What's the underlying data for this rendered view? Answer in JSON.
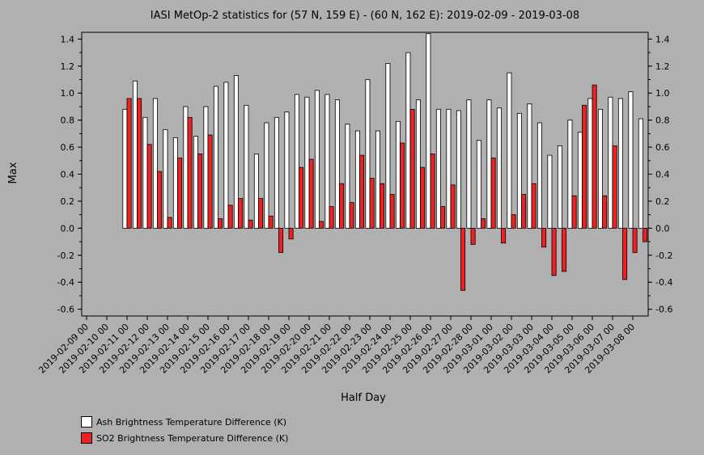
{
  "chart_data": {
    "type": "bar",
    "title": "IASI MetOp-2 statistics for (57 N, 159 E) - (60 N, 162 E): 2019-02-09 - 2019-03-08",
    "xlabel": "Half Day",
    "ylabel": "Max",
    "ylim": [
      -0.65,
      1.45
    ],
    "yticks": [
      "-0.6",
      "-0.4",
      "-0.2",
      "0.0",
      "0.2",
      "0.4",
      "0.6",
      "0.8",
      "1.0",
      "1.2",
      "1.4"
    ],
    "x_tick_labels": [
      "2019-02-09 00",
      "2019-02-10 00",
      "2019-02-11 00",
      "2019-02-12 00",
      "2019-02-13 00",
      "2019-02-14 00",
      "2019-02-15 00",
      "2019-02-16 00",
      "2019-02-17 00",
      "2019-02-18 00",
      "2019-02-19 00",
      "2019-02-20 00",
      "2019-02-21 00",
      "2019-02-22 00",
      "2019-02-23 00",
      "2019-02-24 00",
      "2019-02-25 00",
      "2019-02-26 00",
      "2019-02-27 00",
      "2019-02-28 00",
      "2019-03-01 00",
      "2019-03-02 00",
      "2019-03-03 00",
      "2019-03-04 00",
      "2019-03-05 00",
      "2019-03-06 00",
      "2019-03-07 00",
      "2019-03-08 00"
    ],
    "grid": false,
    "legend_placement": "bottom-left",
    "categories": [
      "2019-02-11 00",
      "2019-02-11 12",
      "2019-02-12 00",
      "2019-02-12 12",
      "2019-02-13 00",
      "2019-02-13 12",
      "2019-02-14 00",
      "2019-02-14 12",
      "2019-02-15 00",
      "2019-02-15 12",
      "2019-02-16 00",
      "2019-02-16 12",
      "2019-02-17 00",
      "2019-02-17 12",
      "2019-02-18 00",
      "2019-02-18 12",
      "2019-02-19 00",
      "2019-02-19 12",
      "2019-02-20 00",
      "2019-02-20 12",
      "2019-02-21 00",
      "2019-02-21 12",
      "2019-02-22 00",
      "2019-02-22 12",
      "2019-02-23 00",
      "2019-02-23 12",
      "2019-02-24 00",
      "2019-02-24 12",
      "2019-02-25 00",
      "2019-02-25 12",
      "2019-02-26 00",
      "2019-02-26 12",
      "2019-02-27 00",
      "2019-02-27 12",
      "2019-02-28 00",
      "2019-02-28 12",
      "2019-03-01 00",
      "2019-03-01 12",
      "2019-03-02 00",
      "2019-03-02 12",
      "2019-03-03 00",
      "2019-03-03 12",
      "2019-03-04 00",
      "2019-03-04 12",
      "2019-03-05 00",
      "2019-03-05 12",
      "2019-03-06 00",
      "2019-03-06 12",
      "2019-03-07 00",
      "2019-03-07 12",
      "2019-03-08 00",
      "2019-03-08 12"
    ],
    "series": [
      {
        "name": "Ash Brightness Temperature Difference (K)",
        "color": "#ffffff",
        "values": [
          0.88,
          1.09,
          0.82,
          0.96,
          0.73,
          0.67,
          0.9,
          0.68,
          0.9,
          1.05,
          1.08,
          1.13,
          0.91,
          0.55,
          0.78,
          0.82,
          0.86,
          0.99,
          0.97,
          1.02,
          0.99,
          0.95,
          0.77,
          0.72,
          1.1,
          0.72,
          1.22,
          0.79,
          1.3,
          0.95,
          1.44,
          0.88,
          0.88,
          0.87,
          0.95,
          0.65,
          0.95,
          0.89,
          1.15,
          0.85,
          0.92,
          0.78,
          0.54,
          0.61,
          0.8,
          0.71,
          0.96,
          0.88,
          0.97,
          0.96,
          1.01,
          0.81
        ]
      },
      {
        "name": "SO2 Brightness Temperature Difference (K)",
        "color": "#ee2222",
        "values": [
          0.96,
          0.96,
          0.62,
          0.42,
          0.08,
          0.52,
          0.82,
          0.55,
          0.69,
          0.07,
          0.17,
          0.22,
          0.06,
          0.22,
          0.09,
          -0.18,
          -0.08,
          0.45,
          0.51,
          0.05,
          0.16,
          0.33,
          0.19,
          0.54,
          0.37,
          0.33,
          0.25,
          0.63,
          0.88,
          0.45,
          0.55,
          0.16,
          0.32,
          -0.46,
          -0.12,
          0.07,
          0.52,
          -0.11,
          0.1,
          0.25,
          0.33,
          -0.14,
          -0.35,
          -0.32,
          0.24,
          0.91,
          1.06,
          0.24,
          0.61,
          -0.38,
          -0.18,
          -0.1
        ]
      }
    ]
  }
}
